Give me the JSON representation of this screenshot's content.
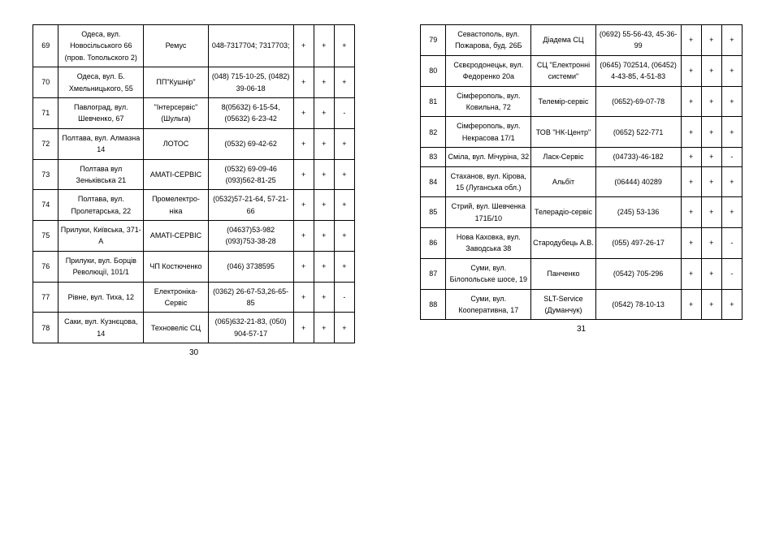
{
  "left_page_number": "30",
  "right_page_number": "31",
  "left_rows": [
    {
      "n": "69",
      "addr": "Одеса, вул. Новосільського 66 (пров. Топольского 2)",
      "name": "Ремус",
      "phone": "048-7317704; 7317703;",
      "c1": "+",
      "c2": "+",
      "c3": "+"
    },
    {
      "n": "70",
      "addr": "Одеса, вул. Б. Хмельницького, 55",
      "name": "ПП\"Кушнір\"",
      "phone": "(048) 715-10-25, (0482) 39-06-18",
      "c1": "+",
      "c2": "+",
      "c3": "+"
    },
    {
      "n": "71",
      "addr": "Павлоград, вул. Шевченко, 67",
      "name": "\"Інтерсервіс\" (Шульга)",
      "phone": "8(05632) 6-15-54, (05632) 6-23-42",
      "c1": "+",
      "c2": "+",
      "c3": "-"
    },
    {
      "n": "72",
      "addr": "Полтава, вул. Алмазна 14",
      "name": "ЛОТОС",
      "phone": "(0532) 69-42-62",
      "c1": "+",
      "c2": "+",
      "c3": "+"
    },
    {
      "n": "73",
      "addr": "Полтава вул Зеньківська 21",
      "name": "АМАТІ-СЕРВІС",
      "phone": "(0532) 69-09-46 (093)562-81-25",
      "c1": "+",
      "c2": "+",
      "c3": "+"
    },
    {
      "n": "74",
      "addr": "Полтава, вул. Пролетарська, 22",
      "name": "Промелектро-ніка",
      "phone": "(0532)57-21-64, 57-21-66",
      "c1": "+",
      "c2": "+",
      "c3": "+"
    },
    {
      "n": "75",
      "addr": "Прилуки, Київська, 371-А",
      "name": "АМАТІ-СЕРВІС",
      "phone": "(04637)53-982 (093)753-38-28",
      "c1": "+",
      "c2": "+",
      "c3": "+"
    },
    {
      "n": "76",
      "addr": "Прилуки, вул. Борців Революції, 101/1",
      "name": "ЧП Костюченко",
      "phone": "(046) 3738595",
      "c1": "+",
      "c2": "+",
      "c3": "+"
    },
    {
      "n": "77",
      "addr": "Рівне, вул. Тиха, 12",
      "name": "Електроніка-Сервіс",
      "phone": "(0362) 26-67-53,26-65-85",
      "c1": "+",
      "c2": "+",
      "c3": "-"
    },
    {
      "n": "78",
      "addr": "Саки, вул. Кузнєцова, 14",
      "name": "Техновеліс СЦ",
      "phone": "(065)632-21-83, (050) 904-57-17",
      "c1": "+",
      "c2": "+",
      "c3": "+"
    }
  ],
  "right_rows": [
    {
      "n": "79",
      "addr": "Севастополь, вул. Пожарова, буд. 26Б",
      "name": "Діадема СЦ",
      "phone": "(0692) 55-56-43, 45-36-99",
      "c1": "+",
      "c2": "+",
      "c3": "+"
    },
    {
      "n": "80",
      "addr": "Сєвєродонецьк, вул. Федоренко 20а",
      "name": "СЦ \"Електронні системи\"",
      "phone": "(0645) 702514, (06452) 4-43-85, 4-51-83",
      "c1": "+",
      "c2": "+",
      "c3": "+"
    },
    {
      "n": "81",
      "addr": "Сімферополь, вул. Ковильна, 72",
      "name": "Телемір-сервіс",
      "phone": "(0652)-69-07-78",
      "c1": "+",
      "c2": "+",
      "c3": "+"
    },
    {
      "n": "82",
      "addr": "Сімферополь, вул. Некрасова 17/1",
      "name": "ТОВ \"НК-Центр\"",
      "phone": "(0652) 522-771",
      "c1": "+",
      "c2": "+",
      "c3": "+"
    },
    {
      "n": "83",
      "addr": "Сміла, вул. Мічуріна, 32",
      "name": "Ласк-Сервіс",
      "phone": "(04733)-46-182",
      "c1": "+",
      "c2": "+",
      "c3": "-"
    },
    {
      "n": "84",
      "addr": "Стаханов, вул. Кірова, 15 (Луганська обл.)",
      "name": "Альбіт",
      "phone": "(06444) 40289",
      "c1": "+",
      "c2": "+",
      "c3": "+"
    },
    {
      "n": "85",
      "addr": "Стрий, вул. Шевченка 171Б/10",
      "name": "Телерадіо-сервіс",
      "phone": "(245) 53-136",
      "c1": "+",
      "c2": "+",
      "c3": "+"
    },
    {
      "n": "86",
      "addr": "Нова Каховка, вул. Заводська 38",
      "name": "Стародубець А.В.",
      "phone": "(055) 497-26-17",
      "c1": "+",
      "c2": "+",
      "c3": "-"
    },
    {
      "n": "87",
      "addr": "Суми, вул. Білопольське шосе, 19",
      "name": "Панченко",
      "phone": "(0542) 705-296",
      "c1": "+",
      "c2": "+",
      "c3": "-"
    },
    {
      "n": "88",
      "addr": "Суми, вул. Кооперативна, 17",
      "name": "SLT-Service (Думанчук)",
      "phone": "(0542) 78-10-13",
      "c1": "+",
      "c2": "+",
      "c3": "+"
    }
  ]
}
